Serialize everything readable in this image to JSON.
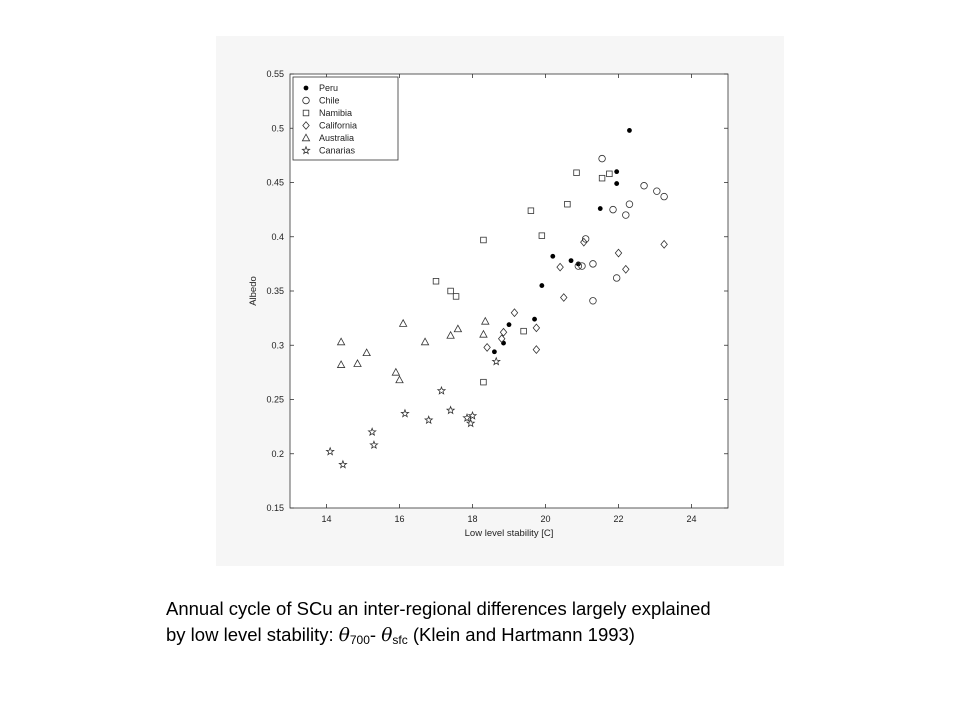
{
  "chart_data": {
    "type": "scatter",
    "title": "",
    "xlabel": "Low level stability [C]",
    "ylabel": "Albedo",
    "xlim": [
      13,
      25
    ],
    "ylim": [
      0.15,
      0.55
    ],
    "xticks": [
      "14",
      "16",
      "18",
      "20",
      "22",
      "24"
    ],
    "yticks": [
      "0.15",
      "0.2",
      "0.25",
      "0.3",
      "0.35",
      "0.4",
      "0.45",
      "0.5",
      "0.55"
    ],
    "grid": false,
    "legend_position": "top-left",
    "series": [
      {
        "name": "Peru",
        "marker": "filled-circle",
        "points": [
          [
            18.6,
            0.294
          ],
          [
            18.85,
            0.302
          ],
          [
            19.0,
            0.319
          ],
          [
            19.7,
            0.324
          ],
          [
            19.9,
            0.355
          ],
          [
            20.2,
            0.382
          ],
          [
            20.7,
            0.378
          ],
          [
            20.9,
            0.375
          ],
          [
            21.5,
            0.426
          ],
          [
            21.95,
            0.449
          ],
          [
            21.95,
            0.46
          ],
          [
            22.3,
            0.498
          ]
        ]
      },
      {
        "name": "Chile",
        "marker": "circle",
        "points": [
          [
            20.9,
            0.373
          ],
          [
            21.0,
            0.373
          ],
          [
            21.1,
            0.398
          ],
          [
            21.3,
            0.375
          ],
          [
            21.3,
            0.341
          ],
          [
            21.55,
            0.472
          ],
          [
            21.85,
            0.425
          ],
          [
            21.95,
            0.362
          ],
          [
            22.2,
            0.42
          ],
          [
            22.3,
            0.43
          ],
          [
            22.7,
            0.447
          ],
          [
            23.05,
            0.442
          ],
          [
            23.25,
            0.437
          ]
        ]
      },
      {
        "name": "Namibia",
        "marker": "square",
        "points": [
          [
            17.0,
            0.359
          ],
          [
            17.4,
            0.35
          ],
          [
            17.55,
            0.345
          ],
          [
            18.3,
            0.397
          ],
          [
            18.3,
            0.266
          ],
          [
            19.4,
            0.313
          ],
          [
            19.6,
            0.424
          ],
          [
            20.6,
            0.43
          ],
          [
            19.9,
            0.401
          ],
          [
            20.85,
            0.459
          ],
          [
            21.55,
            0.454
          ],
          [
            21.75,
            0.458
          ]
        ]
      },
      {
        "name": "California",
        "marker": "diamond",
        "points": [
          [
            18.4,
            0.298
          ],
          [
            18.8,
            0.306
          ],
          [
            18.85,
            0.312
          ],
          [
            19.15,
            0.33
          ],
          [
            19.75,
            0.316
          ],
          [
            19.75,
            0.296
          ],
          [
            20.4,
            0.372
          ],
          [
            20.5,
            0.344
          ],
          [
            21.05,
            0.395
          ],
          [
            22.0,
            0.385
          ],
          [
            22.2,
            0.37
          ],
          [
            23.25,
            0.393
          ]
        ]
      },
      {
        "name": "Australia",
        "marker": "triangle",
        "points": [
          [
            14.4,
            0.282
          ],
          [
            14.4,
            0.303
          ],
          [
            14.85,
            0.283
          ],
          [
            15.1,
            0.293
          ],
          [
            15.9,
            0.275
          ],
          [
            16.0,
            0.268
          ],
          [
            16.1,
            0.32
          ],
          [
            16.7,
            0.303
          ],
          [
            17.4,
            0.309
          ],
          [
            17.6,
            0.315
          ],
          [
            18.3,
            0.31
          ],
          [
            18.35,
            0.322
          ]
        ]
      },
      {
        "name": "Canarias",
        "marker": "star",
        "points": [
          [
            14.1,
            0.202
          ],
          [
            14.45,
            0.19
          ],
          [
            15.25,
            0.22
          ],
          [
            15.3,
            0.208
          ],
          [
            16.15,
            0.237
          ],
          [
            16.8,
            0.231
          ],
          [
            17.15,
            0.258
          ],
          [
            17.4,
            0.24
          ],
          [
            17.85,
            0.233
          ],
          [
            18.0,
            0.235
          ],
          [
            17.95,
            0.228
          ],
          [
            18.65,
            0.285
          ]
        ]
      }
    ]
  },
  "caption": {
    "line1": "Annual cycle of SCu an inter-regional differences largely explained",
    "line2_prefix": "by low level stability: ",
    "theta_symbol": "θ",
    "sub_700": "700",
    "minus": "- ",
    "sub_sfc": "sfc",
    "line2_suffix": " (Klein and Hartmann 1993)"
  }
}
